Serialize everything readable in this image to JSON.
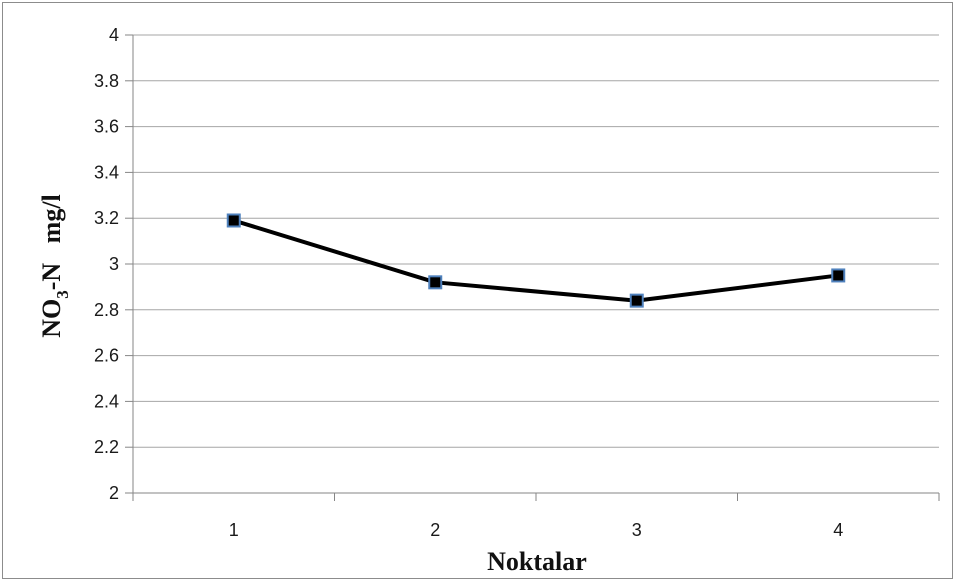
{
  "chart_data": {
    "type": "line",
    "title": "",
    "xlabel": "Noktalar",
    "ylabel_main": "NO",
    "ylabel_subscript": "3",
    "ylabel_tail": "-N   mg/l",
    "categories": [
      "1",
      "2",
      "3",
      "4"
    ],
    "series": [
      {
        "values": [
          3.19,
          2.92,
          2.84,
          2.95
        ]
      }
    ],
    "ylim": [
      2,
      4
    ],
    "ytick_step": 0.2,
    "yticks": [
      "2",
      "2.2",
      "2.4",
      "2.6",
      "2.8",
      "3",
      "3.2",
      "3.4",
      "3.6",
      "3.8",
      "4"
    ],
    "grid": true,
    "legend": "none",
    "colors": {
      "line": "#000000",
      "marker_fill": "#000000",
      "marker_edge": "#4f81bd",
      "gridline": "#a6a6a6",
      "axis": "#868686"
    }
  }
}
